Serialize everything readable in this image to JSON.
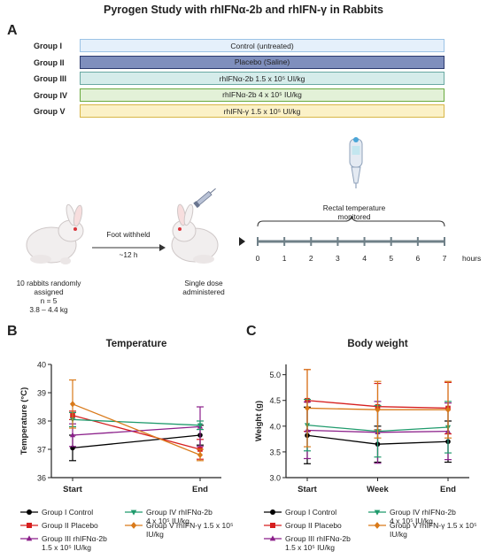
{
  "title": "Pyrogen Study with rhIFNα-2b and rhIFN-γ in Rabbits",
  "panels": {
    "a": "A",
    "b": "B",
    "c": "C"
  },
  "groups": [
    {
      "label": "Group I",
      "text": "Control (untreated)",
      "fill": "#e5f0fb",
      "border": "#9cc3e6"
    },
    {
      "label": "Group II",
      "text": "Placebo (Saline)",
      "fill": "#7f8fbd",
      "border": "#2b3a6e"
    },
    {
      "label": "Group III",
      "text": "rhIFNα-2b  1.5 x 10⁵ UI/kg",
      "fill": "#d5ecea",
      "border": "#6aa9a2"
    },
    {
      "label": "Group IV",
      "text": "rhIFNα-2b   4 x 10⁵ IU/kg",
      "fill": "#e3f1d8",
      "border": "#6aaa3f"
    },
    {
      "label": "Group V",
      "text": "rhIFN-γ      1.5 x 10⁵ UI/kg",
      "fill": "#fbf1c7",
      "border": "#d8b648"
    }
  ],
  "protocol": {
    "rabbits_line1": "10 rabbits randomly",
    "rabbits_line2": "assigned",
    "rabbits_line3": "n = 5",
    "rabbits_line4": "3.8 – 4.4 kg",
    "foot_withheld": "Foot withheld",
    "time_withheld": "~12 h",
    "single_dose_line1": "Single dose",
    "single_dose_line2": "administered",
    "rectal_line1": "Rectal temperature",
    "rectal_line2": "monitored",
    "timeline_ticks": [
      "0",
      "1",
      "2",
      "3",
      "4",
      "5",
      "6",
      "7"
    ],
    "timeline_unit": "hours"
  },
  "chart_data": [
    {
      "type": "line",
      "title": "Temperature",
      "ylabel": "Temperature  (°C)",
      "xlabel": "",
      "categories": [
        "Start",
        "End"
      ],
      "ylim": [
        36,
        40
      ],
      "yticks": [
        36,
        37,
        38,
        39,
        40
      ],
      "series": [
        {
          "name": "Group I Control",
          "color": "#000000",
          "marker": "circle",
          "values": [
            37.05,
            37.5
          ],
          "err": [
            0.45,
            0.35
          ]
        },
        {
          "name": "Group II Placebo",
          "color": "#d61f1f",
          "marker": "square",
          "values": [
            38.2,
            37.0
          ],
          "err": [
            0.15,
            0.35
          ]
        },
        {
          "name": "Group III rhIFNα-2b 1.5 x 10⁵ IU/kg",
          "color": "#8b1f8a",
          "marker": "triangle",
          "values": [
            37.5,
            37.8
          ],
          "err": [
            0.4,
            0.7
          ]
        },
        {
          "name": "Group IV rhIFNα-2b 4 x 10⁵ IU/kg",
          "color": "#1f9a6c",
          "marker": "triangle-down",
          "values": [
            38.05,
            37.85
          ],
          "err": [
            0.25,
            0.15
          ]
        },
        {
          "name": "Group V rhIFN-γ 1.5 x 10⁵ IU/kg",
          "color": "#d97a1a",
          "marker": "diamond",
          "values": [
            38.6,
            36.8
          ],
          "err": [
            0.85,
            0.2
          ]
        }
      ]
    },
    {
      "type": "line",
      "title": "Body weight",
      "ylabel": "Weight  (g)",
      "xlabel": "",
      "categories": [
        "Start",
        "Week",
        "End"
      ],
      "ylim": [
        3.0,
        5.2
      ],
      "yticks": [
        3.0,
        3.5,
        4.0,
        4.5,
        5.0
      ],
      "series": [
        {
          "name": "Group I Control",
          "color": "#000000",
          "marker": "circle",
          "values": [
            3.82,
            3.65,
            3.7
          ],
          "err": [
            0.55,
            0.35,
            0.4
          ]
        },
        {
          "name": "Group II Placebo",
          "color": "#d61f1f",
          "marker": "square",
          "values": [
            4.5,
            4.38,
            4.35
          ],
          "err": [
            0.6,
            0.45,
            0.5
          ]
        },
        {
          "name": "Group III rhIFNα-2b 1.5 x 10⁵ IU/kg",
          "color": "#8b1f8a",
          "marker": "triangle",
          "values": [
            3.92,
            3.88,
            3.9
          ],
          "err": [
            0.55,
            0.6,
            0.55
          ]
        },
        {
          "name": "Group IV rhIFNα-2b 4 x 10⁵ IU/kg",
          "color": "#1f9a6c",
          "marker": "triangle-down",
          "values": [
            4.02,
            3.9,
            3.98
          ],
          "err": [
            0.5,
            0.5,
            0.5
          ]
        },
        {
          "name": "Group V rhIFN-γ 1.5 x 10⁵ IU/kg",
          "color": "#d97a1a",
          "marker": "diamond",
          "values": [
            4.35,
            4.32,
            4.32
          ],
          "err": [
            0.75,
            0.55,
            0.55
          ]
        }
      ]
    }
  ],
  "legend": [
    {
      "line1": "Group I Control",
      "line2": "",
      "color": "#000000",
      "marker": "circle"
    },
    {
      "line1": "Group IV rhIFNα-2b",
      "line2": "4 x 10⁵ IU/kg",
      "color": "#1f9a6c",
      "marker": "triangle-down"
    },
    {
      "line1": "Group II Placebo",
      "line2": "",
      "color": "#d61f1f",
      "marker": "square"
    },
    {
      "line1": "Group V rhIFN-γ 1.5 x 10⁵",
      "line2": "IU/kg",
      "color": "#d97a1a",
      "marker": "diamond"
    },
    {
      "line1": "Group III rhIFNα-2b",
      "line2": "1.5 x 10⁵ IU/kg",
      "color": "#8b1f8a",
      "marker": "triangle"
    }
  ]
}
